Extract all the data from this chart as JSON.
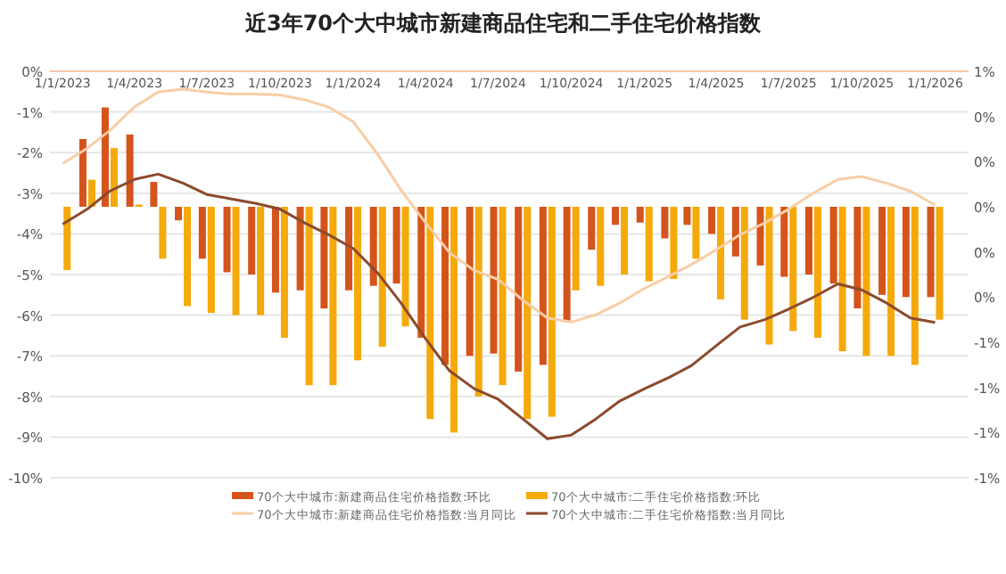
{
  "chart_data": {
    "type": "bar",
    "title": "近3年70个大中城市新建商品住宅和二手住宅价格指数",
    "x": [
      "2023-01",
      "2023-02",
      "2023-03",
      "2023-04",
      "2023-05",
      "2023-06",
      "2023-07",
      "2023-08",
      "2023-09",
      "2023-10",
      "2023-11",
      "2023-12",
      "2024-01",
      "2024-02",
      "2024-03",
      "2024-04",
      "2024-05",
      "2024-06",
      "2024-07",
      "2024-08",
      "2024-09",
      "2024-10",
      "2024-11",
      "2024-12",
      "2025-01",
      "2025-02",
      "2025-03",
      "2025-04",
      "2025-05",
      "2025-06",
      "2025-07",
      "2025-08",
      "2025-09",
      "2025-10",
      "2025-11",
      "2025-12",
      "2026-01"
    ],
    "series": [
      {
        "name": "70个大中城市:新建商品住宅价格指数:环比",
        "axis": "y2",
        "color": "#d4541c",
        "values": [
          0,
          0.3,
          0.44,
          0.32,
          0.11,
          -0.06,
          -0.23,
          -0.29,
          -0.3,
          -0.38,
          -0.37,
          -0.45,
          -0.37,
          -0.35,
          -0.34,
          -0.58,
          -0.7,
          -0.66,
          -0.65,
          -0.73,
          -0.7,
          -0.51,
          -0.19,
          -0.08,
          -0.07,
          -0.14,
          -0.08,
          -0.12,
          -0.22,
          -0.26,
          -0.31,
          -0.3,
          -0.34,
          -0.45,
          -0.39,
          -0.4,
          -0.4
        ]
      },
      {
        "name": "70个大中城市:二手住宅价格指数:环比",
        "axis": "y2",
        "color": "#f5a90a",
        "values": [
          -0.28,
          0.12,
          0.26,
          0.01,
          -0.23,
          -0.44,
          -0.47,
          -0.48,
          -0.48,
          -0.58,
          -0.79,
          -0.79,
          -0.68,
          -0.62,
          -0.53,
          -0.94,
          -1.0,
          -0.84,
          -0.79,
          -0.94,
          -0.93,
          -0.37,
          -0.35,
          -0.3,
          -0.33,
          -0.32,
          -0.23,
          -0.41,
          -0.5,
          -0.61,
          -0.55,
          -0.58,
          -0.64,
          -0.66,
          -0.66,
          -0.7,
          -0.5
        ]
      },
      {
        "name": "70个大中城市:新建商品住宅价格指数:当月同比",
        "type": "line",
        "color": "#f8cda6",
        "values": [
          -2.27,
          -1.89,
          -1.46,
          -0.88,
          -0.51,
          -0.44,
          -0.51,
          -0.56,
          -0.56,
          -0.58,
          -0.7,
          -0.88,
          -1.24,
          -2.05,
          -2.92,
          -3.73,
          -4.46,
          -4.9,
          -5.12,
          -5.63,
          -6.07,
          -6.17,
          -5.99,
          -5.7,
          -5.34,
          -5.04,
          -4.75,
          -4.39,
          -4.02,
          -3.73,
          -3.39,
          -3.0,
          -2.66,
          -2.59,
          -2.75,
          -2.95,
          -3.29
        ]
      },
      {
        "name": "70个大中城市:二手住宅价格指数:当月同比",
        "type": "line",
        "color": "#8c4a2c",
        "values": [
          -3.76,
          -3.39,
          -2.95,
          -2.66,
          -2.53,
          -2.75,
          -3.03,
          -3.14,
          -3.25,
          -3.39,
          -3.73,
          -4.02,
          -4.36,
          -4.97,
          -5.7,
          -6.58,
          -7.37,
          -7.81,
          -8.07,
          -8.55,
          -9.04,
          -8.95,
          -8.55,
          -8.11,
          -7.81,
          -7.53,
          -7.24,
          -6.75,
          -6.29,
          -6.11,
          -5.85,
          -5.56,
          -5.23,
          -5.38,
          -5.7,
          -6.07,
          -6.18
        ]
      }
    ],
    "xlim": [
      "2022-12-16",
      "2026-02-12"
    ],
    "xticks": [
      {
        "value": "2023-01-01",
        "label": "1/1/2023"
      },
      {
        "value": "2023-04-01",
        "label": "1/4/2023"
      },
      {
        "value": "2023-07-01",
        "label": "1/7/2023"
      },
      {
        "value": "2023-10-01",
        "label": "1/10/2023"
      },
      {
        "value": "2024-01-01",
        "label": "1/1/2024"
      },
      {
        "value": "2024-04-01",
        "label": "1/4/2024"
      },
      {
        "value": "2024-07-01",
        "label": "1/7/2024"
      },
      {
        "value": "2024-10-01",
        "label": "1/10/2024"
      },
      {
        "value": "2025-01-01",
        "label": "1/1/2025"
      },
      {
        "value": "2025-04-01",
        "label": "1/4/2025"
      },
      {
        "value": "2025-07-01",
        "label": "1/7/2025"
      },
      {
        "value": "2025-10-01",
        "label": "1/10/2025"
      },
      {
        "value": "2026-01-01",
        "label": "1/1/2026"
      }
    ],
    "ylim": [
      -10,
      0
    ],
    "yticks": [
      {
        "value": 0,
        "label": "0%"
      },
      {
        "value": -1,
        "label": "-1%"
      },
      {
        "value": -2,
        "label": "-2%"
      },
      {
        "value": -3,
        "label": "-3%"
      },
      {
        "value": -4,
        "label": "-4%"
      },
      {
        "value": -5,
        "label": "-5%"
      },
      {
        "value": -6,
        "label": "-6%"
      },
      {
        "value": -7,
        "label": "-7%"
      },
      {
        "value": -8,
        "label": "-8%"
      },
      {
        "value": -9,
        "label": "-9%"
      },
      {
        "value": -10,
        "label": "-10%"
      }
    ],
    "y2lim": [
      -1.2,
      0.6
    ],
    "y2ticks": [
      {
        "value": 0.6,
        "label": "1%"
      },
      {
        "value": 0.4,
        "label": "0%"
      },
      {
        "value": 0.2,
        "label": "0%"
      },
      {
        "value": 0,
        "label": "0%"
      },
      {
        "value": -0.2,
        "label": "0%"
      },
      {
        "value": -0.4,
        "label": "0%"
      },
      {
        "value": -0.6,
        "label": "-1%"
      },
      {
        "value": -0.8,
        "label": "-1%"
      },
      {
        "value": -1.0,
        "label": "-1%"
      },
      {
        "value": -1.2,
        "label": "-1%"
      }
    ],
    "grid": "y",
    "legend": "bottom"
  }
}
